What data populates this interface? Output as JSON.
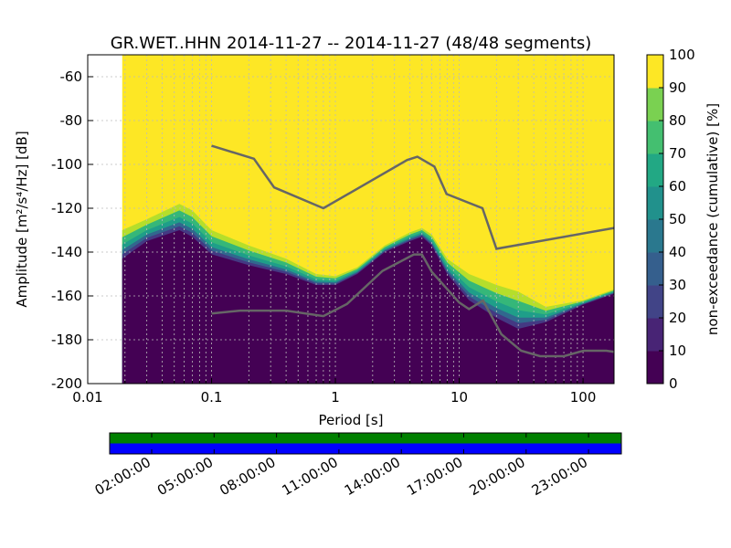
{
  "chart_data": {
    "type": "heatmap",
    "title": "GR.WET..HHN   2014-11-27 -- 2014-11-27  (48/48 segments)",
    "xlabel": "Period [s]",
    "ylabel": "Amplitude [m²/s⁴/Hz] [dB]",
    "xscale": "log",
    "xlim": [
      0.01,
      178
    ],
    "ylim": [
      -200,
      -50
    ],
    "xticks": [
      {
        "v": 0.01,
        "l": "0.01"
      },
      {
        "v": 0.1,
        "l": "0.1"
      },
      {
        "v": 1,
        "l": "1"
      },
      {
        "v": 10,
        "l": "10"
      },
      {
        "v": 100,
        "l": "100"
      }
    ],
    "yticks": [
      -60,
      -80,
      -100,
      -120,
      -140,
      -160,
      -180,
      -200
    ],
    "grid": true,
    "ppd_start_period": 0.019,
    "ppd_low_boundary": [
      [
        0.019,
        -143
      ],
      [
        0.03,
        -135
      ],
      [
        0.055,
        -130
      ],
      [
        0.07,
        -133
      ],
      [
        0.1,
        -141
      ],
      [
        0.2,
        -146
      ],
      [
        0.4,
        -150
      ],
      [
        0.7,
        -155
      ],
      [
        1,
        -155
      ],
      [
        1.5,
        -150
      ],
      [
        2.5,
        -140
      ],
      [
        4,
        -135
      ],
      [
        5,
        -133
      ],
      [
        6,
        -137
      ],
      [
        8,
        -150
      ],
      [
        12,
        -162
      ],
      [
        20,
        -170
      ],
      [
        30,
        -175
      ],
      [
        50,
        -172
      ],
      [
        100,
        -164
      ],
      [
        178,
        -159
      ]
    ],
    "ppd_high_boundary": [
      [
        0.019,
        -130
      ],
      [
        0.03,
        -125
      ],
      [
        0.055,
        -118
      ],
      [
        0.07,
        -121
      ],
      [
        0.1,
        -130
      ],
      [
        0.2,
        -137
      ],
      [
        0.4,
        -143
      ],
      [
        0.7,
        -150
      ],
      [
        1,
        -151
      ],
      [
        1.5,
        -147
      ],
      [
        2.5,
        -137
      ],
      [
        4,
        -131
      ],
      [
        5,
        -129
      ],
      [
        6,
        -132
      ],
      [
        8,
        -143
      ],
      [
        12,
        -150
      ],
      [
        20,
        -155
      ],
      [
        30,
        -158
      ],
      [
        50,
        -165
      ],
      [
        100,
        -162
      ],
      [
        178,
        -157
      ]
    ],
    "nhnm": [
      [
        0.1,
        -91.5
      ],
      [
        0.22,
        -97.4
      ],
      [
        0.32,
        -110.5
      ],
      [
        0.8,
        -120
      ],
      [
        3.8,
        -98
      ],
      [
        4.6,
        -96.5
      ],
      [
        6.3,
        -101
      ],
      [
        7.9,
        -113.5
      ],
      [
        15.4,
        -120
      ],
      [
        20,
        -138.5
      ],
      [
        178,
        -129
      ]
    ],
    "nlnm": [
      [
        0.1,
        -168
      ],
      [
        0.17,
        -166.7
      ],
      [
        0.4,
        -166.7
      ],
      [
        0.8,
        -169.2
      ],
      [
        1.24,
        -163.7
      ],
      [
        2.4,
        -148.6
      ],
      [
        4.3,
        -141.1
      ],
      [
        5,
        -141.1
      ],
      [
        6,
        -149
      ],
      [
        10,
        -163
      ],
      [
        12,
        -166
      ],
      [
        15.6,
        -162.1
      ],
      [
        21.9,
        -177.5
      ],
      [
        31.6,
        -185
      ],
      [
        45,
        -187.5
      ],
      [
        70,
        -187.5
      ],
      [
        101,
        -185
      ],
      [
        154,
        -185
      ],
      [
        178,
        -185.5
      ]
    ],
    "colorbar": {
      "label": "non-exceedance (cumulative) [%]",
      "ticks": [
        0,
        10,
        20,
        30,
        40,
        50,
        60,
        70,
        80,
        90,
        100
      ],
      "range": [
        0,
        100
      ]
    },
    "time_bar": {
      "tick_labels": [
        "02:00:00",
        "05:00:00",
        "08:00:00",
        "11:00:00",
        "14:00:00",
        "17:00:00",
        "20:00:00",
        "23:00:00"
      ],
      "colors": {
        "covered": "#008000",
        "used": "#0000ff"
      }
    },
    "colors": {
      "low": "#440154",
      "high": "#fde725",
      "model_line": "#666666"
    }
  }
}
